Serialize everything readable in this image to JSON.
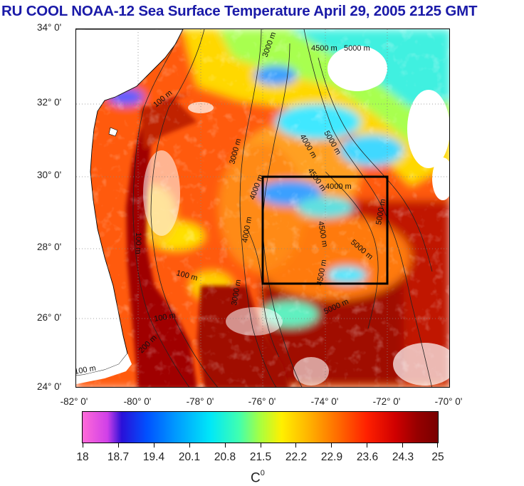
{
  "title": "RU COOL  NOAA-12 Sea Surface Temperature April 29, 2005 2125 GMT",
  "map": {
    "lat_labels": [
      "34° 0'",
      "32° 0'",
      "30° 0'",
      "28° 0'",
      "26° 0'",
      "24° 0'"
    ],
    "lon_labels": [
      "-82° 0'",
      "-80° 0'",
      "-78° 0'",
      "-76° 0'",
      "-74° 0'",
      "-72° 0'",
      "-70° 0'"
    ],
    "lat_range": [
      24,
      34
    ],
    "lon_range": [
      -82,
      -70
    ],
    "study_box": {
      "lon": [
        -76,
        -72
      ],
      "lat": [
        27,
        30
      ]
    },
    "contour_labels": [
      "3000 m",
      "4500 m",
      "5000 m",
      "100 m",
      "4000 m",
      "5000 m",
      "3000 m",
      "4500 m",
      "4000 m",
      "100 m",
      "5000 m",
      "4500 m",
      "5000 m",
      "4500 m",
      "100 m",
      "100 m",
      "200 m",
      "5000 m",
      "100 m",
      "4000 m",
      "3000 m",
      "4000 m"
    ]
  },
  "colorbar": {
    "labels": [
      "18",
      "18.7",
      "19.4",
      "20.1",
      "20.8",
      "21.5",
      "22.2",
      "22.9",
      "23.6",
      "24.3",
      "25"
    ],
    "unit": "C",
    "unit_sup": "0",
    "range": [
      18,
      25
    ]
  },
  "colors": {
    "title": "#1a1aa8",
    "warm": "#a00000",
    "cloud": "#ffffff"
  }
}
